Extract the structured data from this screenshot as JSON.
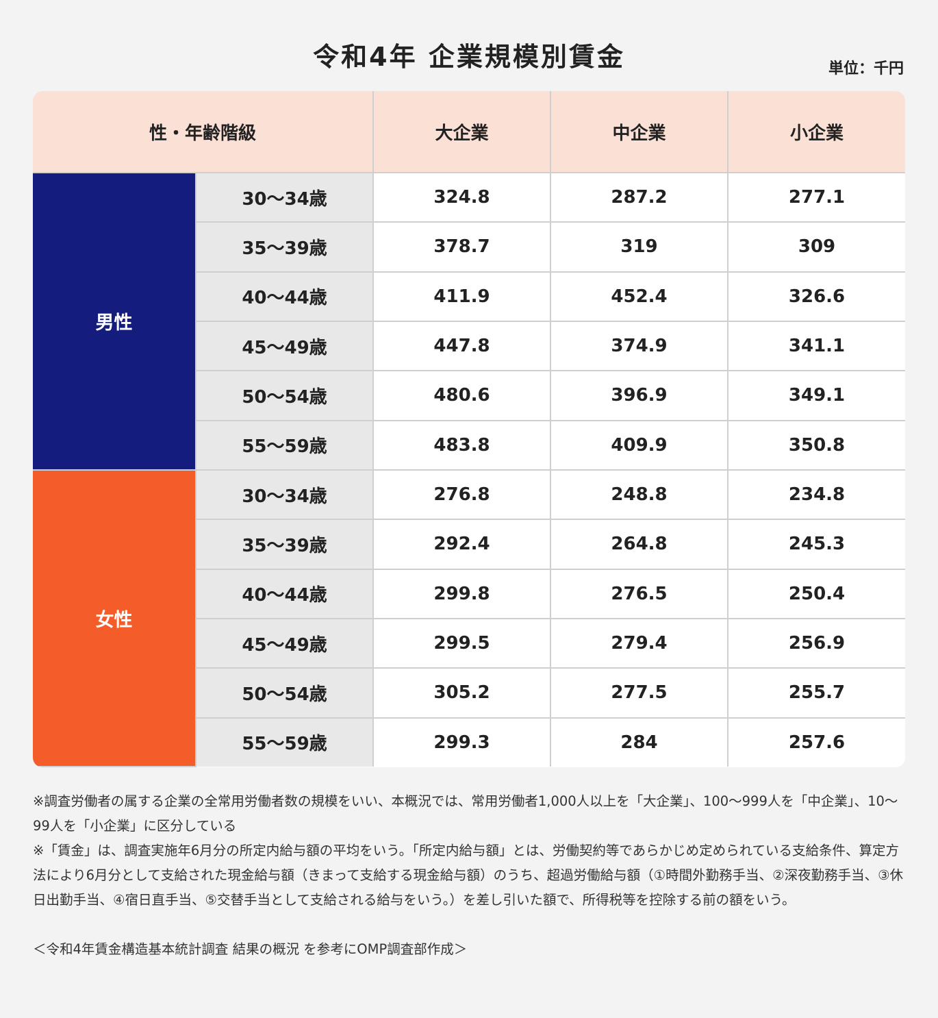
{
  "title": "令和4年 企業規模別賃金",
  "unit": "単位：千円",
  "chart_data": {
    "type": "table",
    "title": "令和4年 企業規模別賃金",
    "unit": "単位：千円",
    "header": [
      "性・年齢階級",
      "大企業",
      "中企業",
      "小企業"
    ],
    "groups": [
      {
        "name": "男性",
        "color": "#141c7e",
        "rows": [
          {
            "age": "30〜34歳",
            "values": [
              "324.8",
              "287.2",
              "277.1"
            ]
          },
          {
            "age": "35〜39歳",
            "values": [
              "378.7",
              "319",
              "309"
            ]
          },
          {
            "age": "40〜44歳",
            "values": [
              "411.9",
              "452.4",
              "326.6"
            ]
          },
          {
            "age": "45〜49歳",
            "values": [
              "447.8",
              "374.9",
              "341.1"
            ]
          },
          {
            "age": "50〜54歳",
            "values": [
              "480.6",
              "396.9",
              "349.1"
            ]
          },
          {
            "age": "55〜59歳",
            "values": [
              "483.8",
              "409.9",
              "350.8"
            ]
          }
        ]
      },
      {
        "name": "女性",
        "color": "#f45d2a",
        "rows": [
          {
            "age": "30〜34歳",
            "values": [
              "276.8",
              "248.8",
              "234.8"
            ]
          },
          {
            "age": "35〜39歳",
            "values": [
              "292.4",
              "264.8",
              "245.3"
            ]
          },
          {
            "age": "40〜44歳",
            "values": [
              "299.8",
              "276.5",
              "250.4"
            ]
          },
          {
            "age": "45〜49歳",
            "values": [
              "299.5",
              "279.4",
              "256.9"
            ]
          },
          {
            "age": "50〜54歳",
            "values": [
              "305.2",
              "277.5",
              "255.7"
            ]
          },
          {
            "age": "55〜59歳",
            "values": [
              "299.3",
              "284",
              "257.6"
            ]
          }
        ]
      }
    ]
  },
  "notes": [
    "※調査労働者の属する企業の全常用労働者数の規模をいい、本概況では、常用労働者1,000人以上を「大企業」、100〜999人を「中企業」、10〜99人を「小企業」に区分している",
    "※「賃金」は、調査実施年6月分の所定内給与額の平均をいう。「所定内給与額」とは、労働契約等であらかじめ定められている支給条件、算定方法により6月分として支給された現金給与額（きまって支給する現金給与額）のうち、超過労働給与額（①時間外勤務手当、②深夜勤務手当、③休日出勤手当、④宿日直手当、⑤交替手当として支給される給与をいう。）を差し引いた額で、所得税等を控除する前の額をいう。"
  ],
  "source": "＜令和4年賃金構造基本統計調査 結果の概況 を参考にOMP調査部作成＞"
}
